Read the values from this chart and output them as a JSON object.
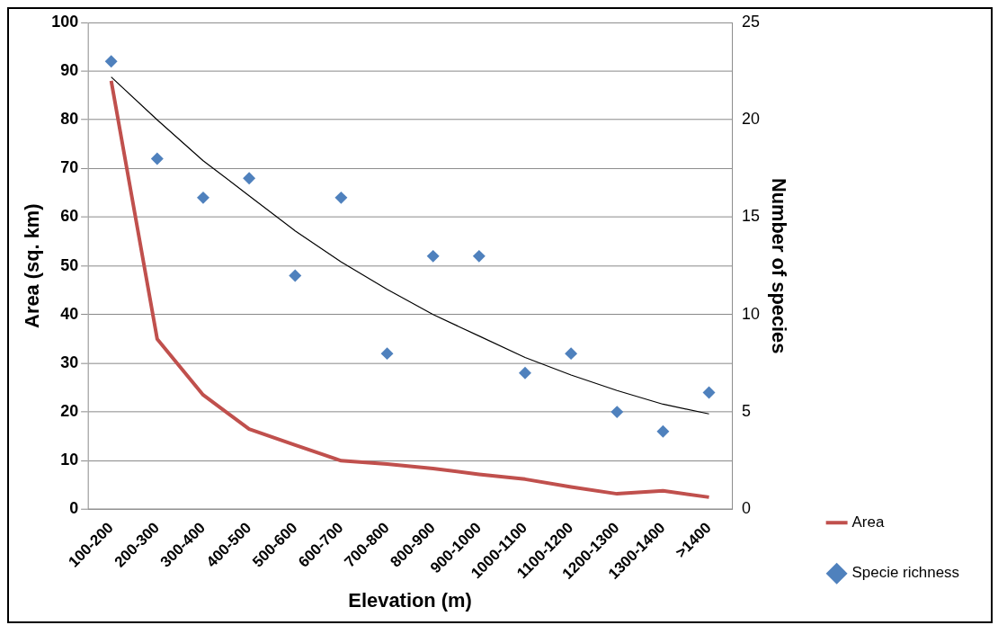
{
  "chart_data": {
    "type": "line",
    "xlabel": "Elevation (m)",
    "ylabel": "Area (sq. km)",
    "y2label": "Number of species",
    "categories": [
      "100-200",
      "200-300",
      "300-400",
      "400-500",
      "500-600",
      "600-700",
      "700-800",
      "800-900",
      "900-1000",
      "1000-1100",
      "1100-1200",
      "1200-1300",
      "1300-1400",
      ">1400"
    ],
    "series": [
      {
        "name": "Area",
        "type": "line",
        "color": "#c0504d",
        "marker": "none",
        "values": [
          88,
          35,
          23.5,
          16.5,
          13.2,
          10,
          9.3,
          8.4,
          7.2,
          6.2,
          4.6,
          3.2,
          3.8,
          2.5
        ]
      },
      {
        "name": "Specie richness",
        "type": "scatter",
        "axis": "y2",
        "color": "#4f81bd",
        "marker": "diamond",
        "values": [
          23,
          18,
          16,
          17,
          12,
          16,
          8,
          13,
          13,
          7,
          8,
          5,
          4,
          6
        ]
      },
      {
        "type": "line",
        "axis": "y2",
        "color": "#000000",
        "marker": "none",
        "values": [
          22.2,
          20.0,
          17.9,
          16.1,
          14.3,
          12.7,
          11.3,
          10.0,
          8.9,
          7.8,
          6.9,
          6.1,
          5.4,
          4.9
        ]
      }
    ],
    "ylim": [
      0,
      100
    ],
    "yticks": [
      0,
      10,
      20,
      30,
      40,
      50,
      60,
      70,
      80,
      90,
      100
    ],
    "y2lim": [
      0,
      25
    ],
    "y2ticks": [
      0,
      5,
      10,
      15,
      20,
      25
    ],
    "grid": "y",
    "legend": "right"
  }
}
